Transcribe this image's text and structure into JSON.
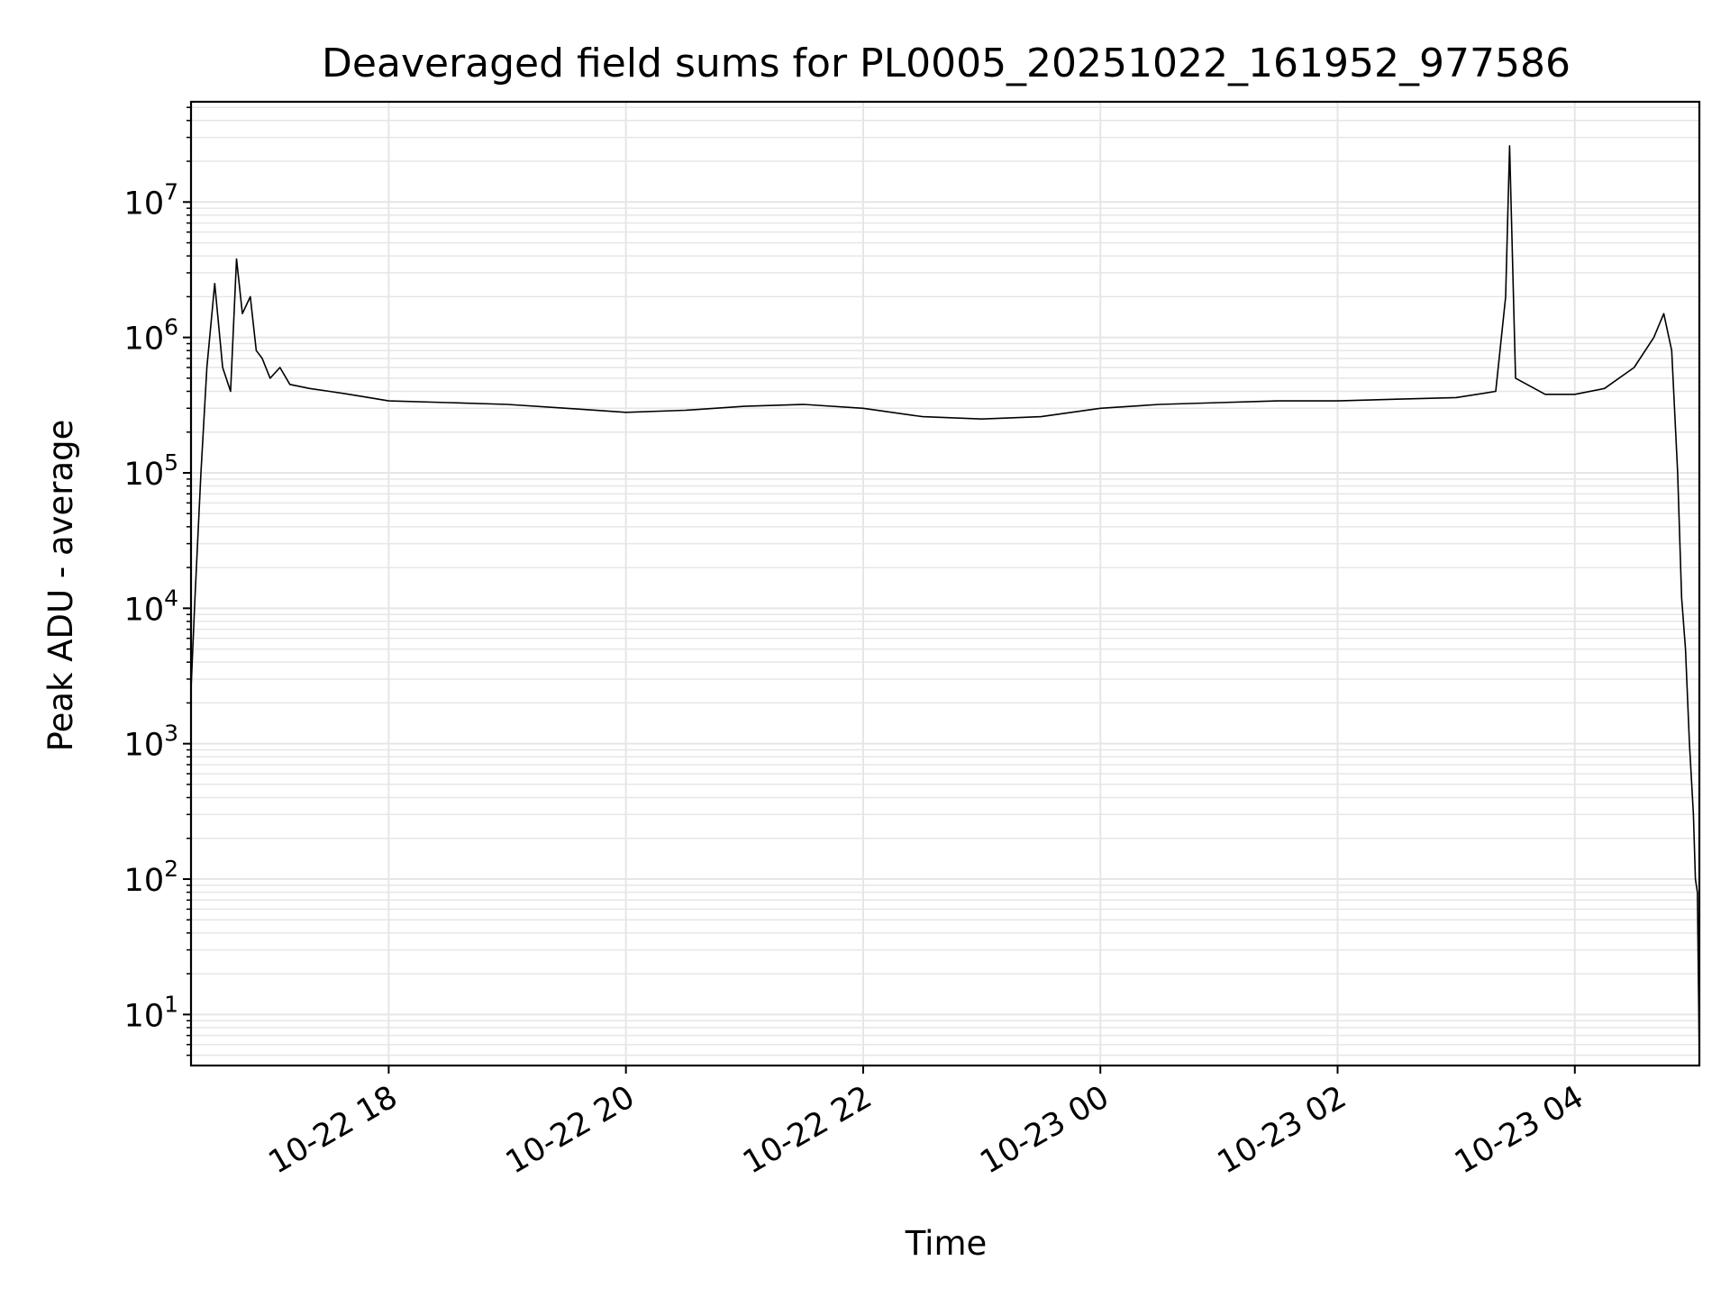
{
  "chart_data": {
    "type": "line",
    "title": "Deaveraged field sums for PL0005_20251022_161952_977586",
    "xlabel": "Time",
    "ylabel": "Peak ADU - average",
    "xlim": [
      "2025-10-22 16:20",
      "2025-10-23 05:03"
    ],
    "ylim": [
      4.2,
      55000000
    ],
    "yscale": "log",
    "grid": true,
    "line_color": "#000000",
    "grid_color": "#e6e6e6",
    "x_ticks": [
      {
        "t": "2025-10-22 18:00",
        "label": "10-22 18"
      },
      {
        "t": "2025-10-22 20:00",
        "label": "10-22 20"
      },
      {
        "t": "2025-10-22 22:00",
        "label": "10-22 22"
      },
      {
        "t": "2025-10-23 00:00",
        "label": "10-23 00"
      },
      {
        "t": "2025-10-23 02:00",
        "label": "10-23 02"
      },
      {
        "t": "2025-10-23 04:00",
        "label": "10-23 04"
      }
    ],
    "y_ticks": [
      {
        "v": 10,
        "base": "10",
        "exp": "1"
      },
      {
        "v": 100,
        "base": "10",
        "exp": "2"
      },
      {
        "v": 1000,
        "base": "10",
        "exp": "3"
      },
      {
        "v": 10000,
        "base": "10",
        "exp": "4"
      },
      {
        "v": 100000,
        "base": "10",
        "exp": "5"
      },
      {
        "v": 1000000,
        "base": "10",
        "exp": "6"
      },
      {
        "v": 10000000,
        "base": "10",
        "exp": "7"
      }
    ],
    "series": [
      {
        "x": [
          "2025-10-22 16:20",
          "2025-10-22 16:22",
          "2025-10-22 16:25",
          "2025-10-22 16:28",
          "2025-10-22 16:32",
          "2025-10-22 16:36",
          "2025-10-22 16:40",
          "2025-10-22 16:43",
          "2025-10-22 16:46",
          "2025-10-22 16:50",
          "2025-10-22 16:53",
          "2025-10-22 16:56",
          "2025-10-22 17:00",
          "2025-10-22 17:05",
          "2025-10-22 17:10",
          "2025-10-22 17:20",
          "2025-10-22 17:30",
          "2025-10-22 17:40",
          "2025-10-22 17:50",
          "2025-10-22 18:00",
          "2025-10-22 18:30",
          "2025-10-22 19:00",
          "2025-10-22 19:30",
          "2025-10-22 20:00",
          "2025-10-22 20:30",
          "2025-10-22 21:00",
          "2025-10-22 21:30",
          "2025-10-22 22:00",
          "2025-10-22 22:30",
          "2025-10-22 23:00",
          "2025-10-22 23:30",
          "2025-10-23 00:00",
          "2025-10-23 00:30",
          "2025-10-23 01:00",
          "2025-10-23 01:30",
          "2025-10-23 02:00",
          "2025-10-23 02:30",
          "2025-10-23 03:00",
          "2025-10-23 03:20",
          "2025-10-23 03:25",
          "2025-10-23 03:27",
          "2025-10-23 03:30",
          "2025-10-23 03:45",
          "2025-10-23 04:00",
          "2025-10-23 04:15",
          "2025-10-23 04:30",
          "2025-10-23 04:40",
          "2025-10-23 04:45",
          "2025-10-23 04:49",
          "2025-10-23 04:52",
          "2025-10-23 04:54",
          "2025-10-23 04:56",
          "2025-10-23 04:58",
          "2025-10-23 05:00",
          "2025-10-23 05:01",
          "2025-10-23 05:02",
          "2025-10-23 05:03"
        ],
        "y": [
          2500,
          12000,
          100000,
          600000,
          2500000,
          600000,
          400000,
          3800000,
          1500000,
          2000000,
          800000,
          700000,
          500000,
          600000,
          450000,
          420000,
          400000,
          380000,
          360000,
          340000,
          330000,
          320000,
          300000,
          280000,
          290000,
          310000,
          320000,
          300000,
          260000,
          250000,
          260000,
          300000,
          320000,
          330000,
          340000,
          340000,
          350000,
          360000,
          400000,
          2000000,
          26000000,
          500000,
          380000,
          380000,
          420000,
          600000,
          1000000,
          1500000,
          800000,
          100000,
          12000,
          5000,
          1000,
          300,
          100,
          80,
          4.5
        ]
      }
    ]
  }
}
